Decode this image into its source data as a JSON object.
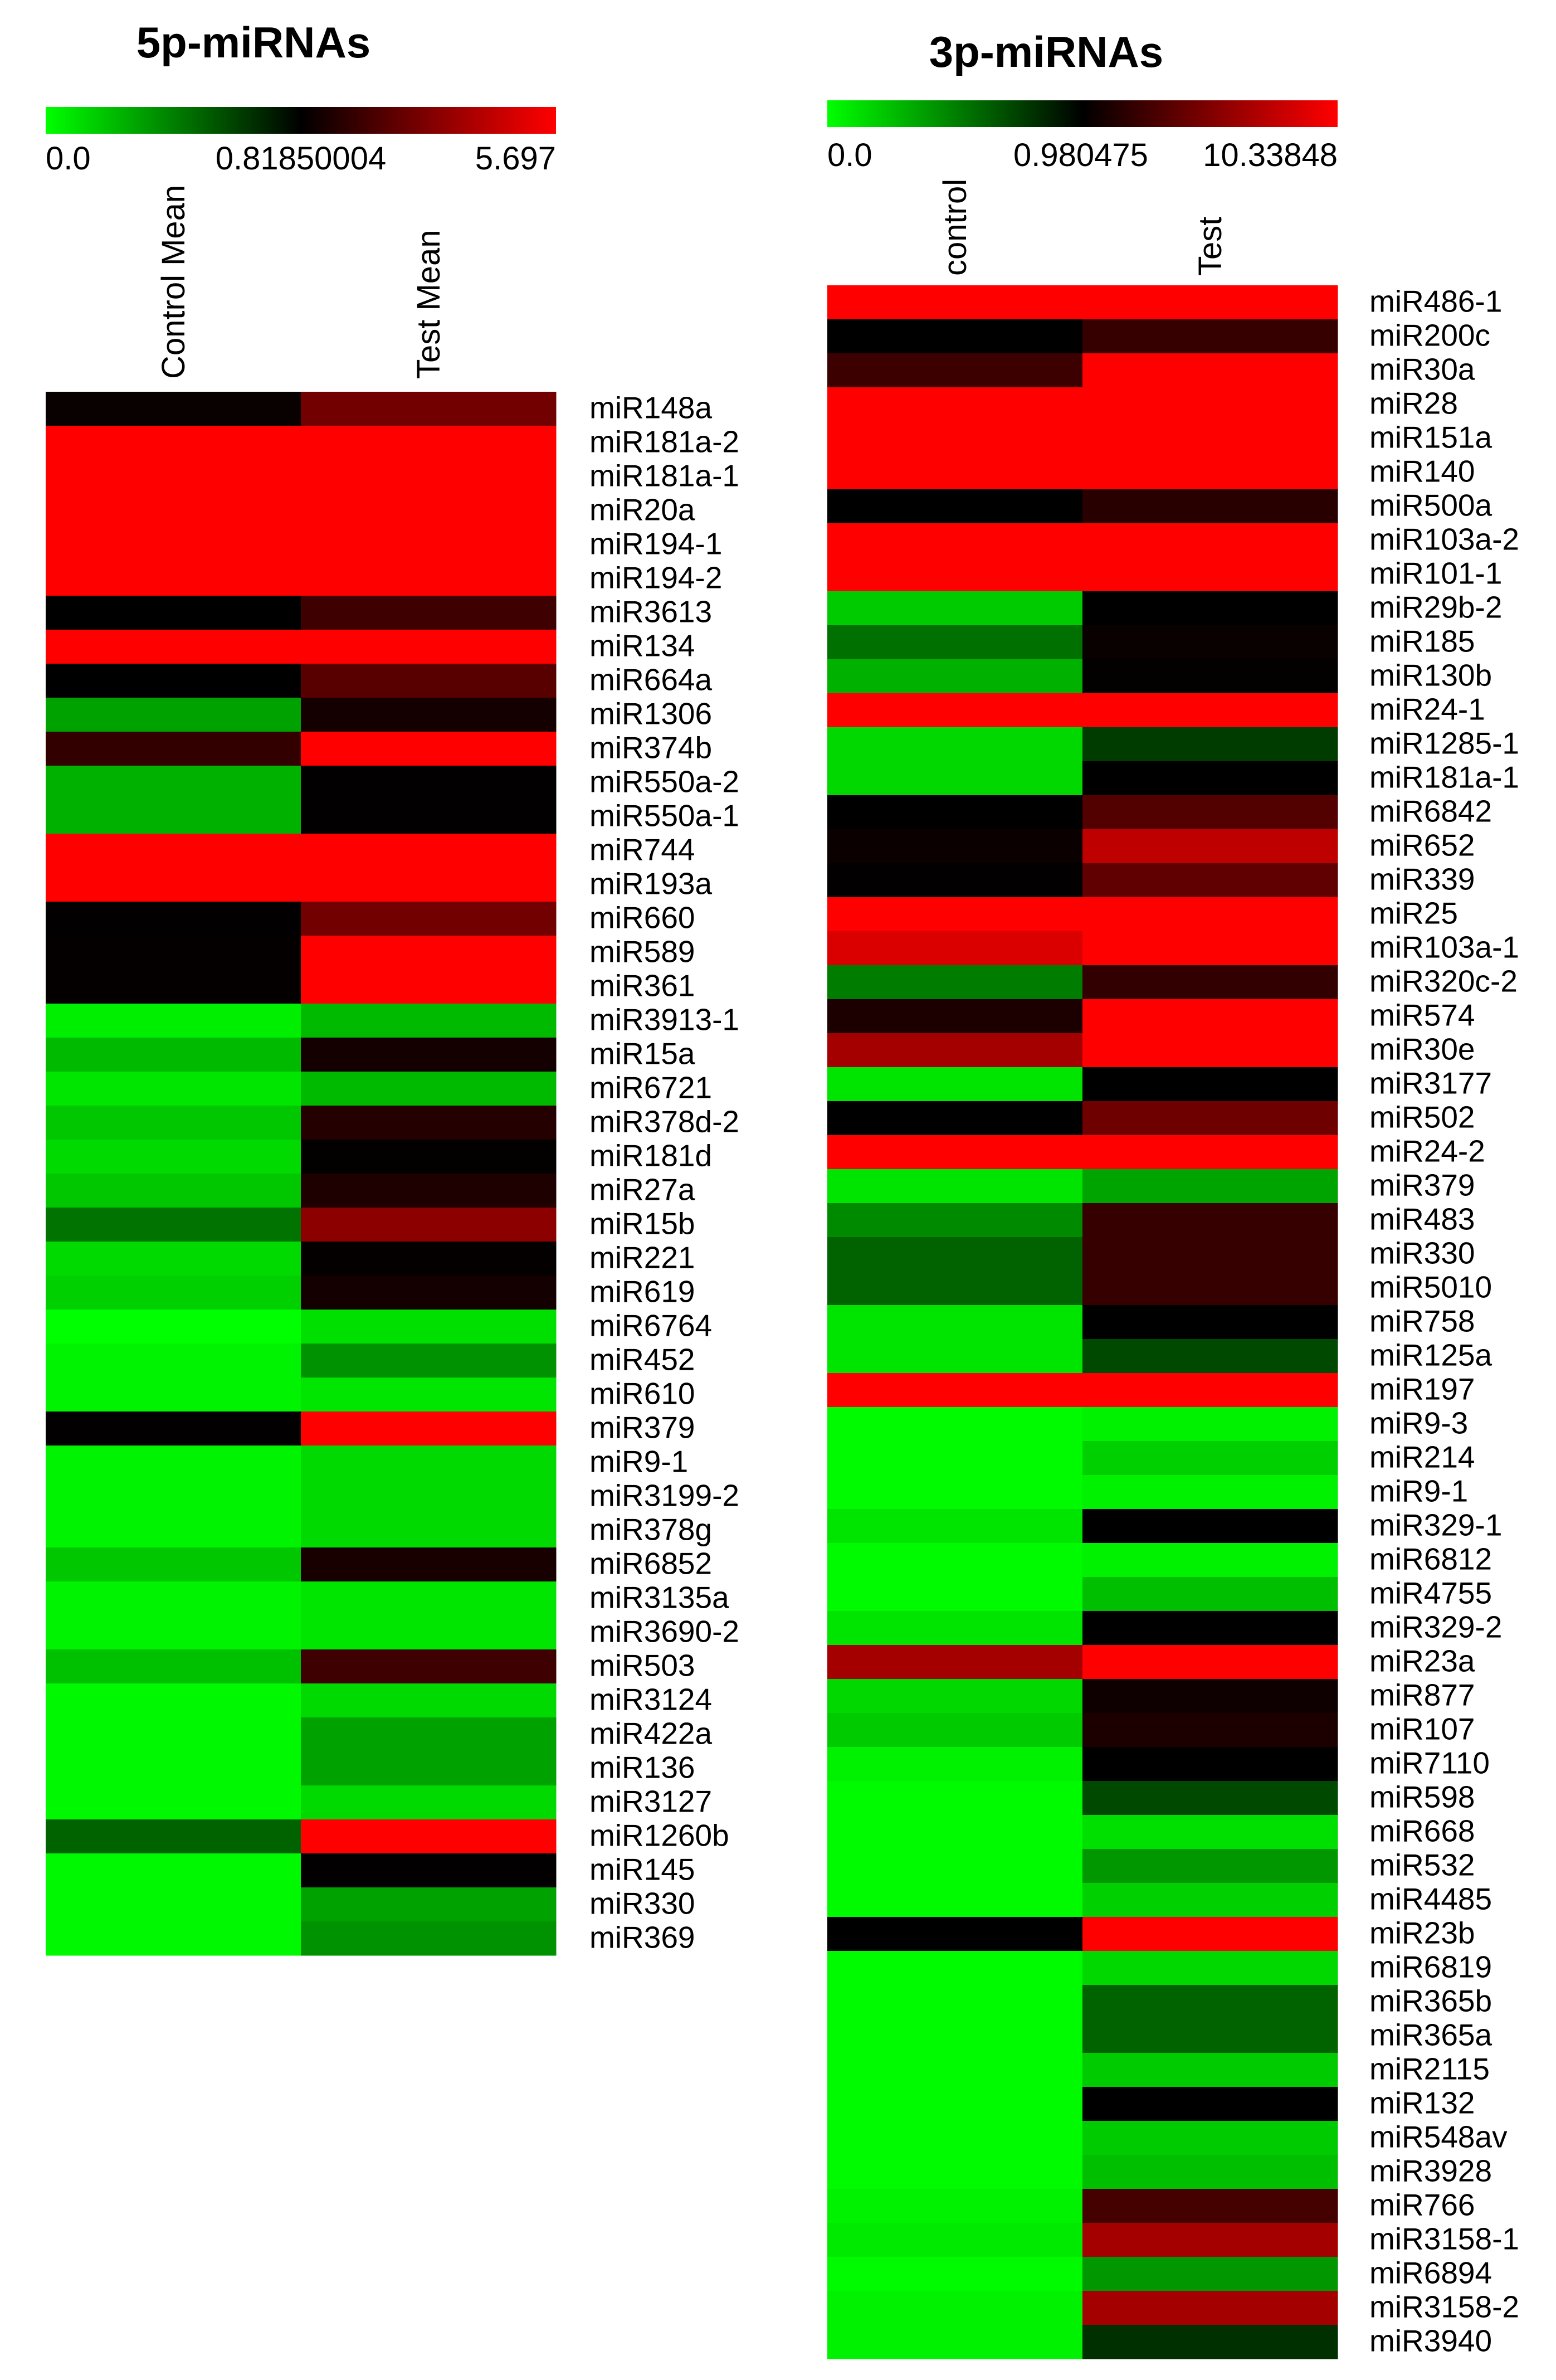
{
  "chart_data": [
    {
      "type": "heatmap",
      "title": "5p-miRNAs",
      "columns": [
        "Control Mean",
        "Test Mean"
      ],
      "scale": {
        "min": 0.0,
        "mid": 0.81850004,
        "max": 5.697,
        "min_label": "0.0",
        "mid_label": "0.81850004",
        "max_label": "5.697",
        "colors": [
          "#00ff00",
          "#000000",
          "#ff0000"
        ]
      },
      "rows": [
        "miR148a",
        "miR181a-2",
        "miR181a-1",
        "miR20a",
        "miR194-1",
        "miR194-2",
        "miR3613",
        "miR134",
        "miR664a",
        "miR1306",
        "miR374b",
        "miR550a-2",
        "miR550a-1",
        "miR744",
        "miR193a",
        "miR660",
        "miR589",
        "miR361",
        "miR3913-1",
        "miR15a",
        "miR6721",
        "miR378d-2",
        "miR181d",
        "miR27a",
        "miR15b",
        "miR221",
        "miR619",
        "miR6764",
        "miR452",
        "miR610",
        "miR379",
        "miR9-1",
        "miR3199-2",
        "miR378g",
        "miR6852",
        "miR3135a",
        "miR3690-2",
        "miR503",
        "miR3124",
        "miR422a",
        "miR136",
        "miR3127",
        "miR1260b",
        "miR145",
        "miR330",
        "miR369"
      ],
      "values": [
        [
          1.0,
          3.0
        ],
        [
          6.0,
          6.0
        ],
        [
          6.0,
          6.0
        ],
        [
          6.0,
          6.0
        ],
        [
          6.0,
          6.0
        ],
        [
          6.0,
          6.0
        ],
        [
          0.82,
          2.0
        ],
        [
          6.0,
          6.0
        ],
        [
          0.82,
          2.5
        ],
        [
          0.3,
          1.2
        ],
        [
          1.8,
          6.0
        ],
        [
          0.25,
          0.85
        ],
        [
          0.25,
          0.85
        ],
        [
          6.0,
          6.0
        ],
        [
          6.0,
          6.0
        ],
        [
          0.85,
          3.0
        ],
        [
          0.9,
          6.0
        ],
        [
          0.9,
          6.0
        ],
        [
          0.05,
          0.22
        ],
        [
          0.22,
          1.2
        ],
        [
          0.08,
          0.22
        ],
        [
          0.18,
          1.5
        ],
        [
          0.12,
          0.88
        ],
        [
          0.18,
          1.4
        ],
        [
          0.45,
          3.5
        ],
        [
          0.12,
          0.9
        ],
        [
          0.15,
          1.2
        ],
        [
          0.0,
          0.1
        ],
        [
          0.04,
          0.35
        ],
        [
          0.04,
          0.08
        ],
        [
          0.85,
          6.0
        ],
        [
          0.04,
          0.12
        ],
        [
          0.04,
          0.12
        ],
        [
          0.04,
          0.12
        ],
        [
          0.18,
          1.3
        ],
        [
          0.04,
          0.08
        ],
        [
          0.04,
          0.08
        ],
        [
          0.2,
          2.0
        ],
        [
          0.02,
          0.12
        ],
        [
          0.02,
          0.3
        ],
        [
          0.02,
          0.3
        ],
        [
          0.02,
          0.12
        ],
        [
          0.5,
          6.0
        ],
        [
          0.02,
          0.85
        ],
        [
          0.02,
          0.3
        ],
        [
          0.02,
          0.35
        ]
      ]
    },
    {
      "type": "heatmap",
      "title": "3p-miRNAs",
      "columns": [
        "control",
        "Test"
      ],
      "scale": {
        "min": 0.0,
        "mid": 0.980475,
        "max": 10.33848,
        "min_label": "0.0",
        "mid_label": "0.980475",
        "max_label": "10.33848",
        "colors": [
          "#00ff00",
          "#000000",
          "#ff0000"
        ]
      },
      "rows": [
        "miR486-1",
        "miR200c",
        "miR30a",
        "miR28",
        "miR151a",
        "miR140",
        "miR500a",
        "miR103a-2",
        "miR101-1",
        "miR29b-2",
        "miR185",
        "miR130b",
        "miR24-1",
        "miR1285-1",
        "miR181a-1",
        "miR6842",
        "miR652",
        "miR339",
        "miR25",
        "miR103a-1",
        "miR320c-2",
        "miR574",
        "miR30e",
        "miR3177",
        "miR502",
        "miR24-2",
        "miR379",
        "miR483",
        "miR330",
        "miR5010",
        "miR758",
        "miR125a",
        "miR197",
        "miR9-3",
        "miR214",
        "miR9-1",
        "miR329-1",
        "miR6812",
        "miR4755",
        "miR329-2",
        "miR23a",
        "miR877",
        "miR107",
        "miR7110",
        "miR598",
        "miR668",
        "miR532",
        "miR4485",
        "miR23b",
        "miR6819",
        "miR365b",
        "miR365a",
        "miR2115",
        "miR132",
        "miR548av",
        "miR3928",
        "miR766",
        "miR3158-1",
        "miR6894",
        "miR3158-2",
        "miR3940"
      ],
      "values": [
        [
          11.0,
          11.0
        ],
        [
          1.0,
          3.0
        ],
        [
          3.2,
          11.0
        ],
        [
          11.0,
          11.0
        ],
        [
          11.0,
          11.0
        ],
        [
          11.0,
          11.0
        ],
        [
          0.98,
          2.5
        ],
        [
          11.0,
          11.0
        ],
        [
          11.0,
          11.0
        ],
        [
          0.2,
          0.98
        ],
        [
          0.55,
          1.3
        ],
        [
          0.3,
          1.1
        ],
        [
          11.0,
          11.0
        ],
        [
          0.15,
          0.75
        ],
        [
          0.15,
          1.0
        ],
        [
          0.98,
          4.0
        ],
        [
          1.4,
          8.0
        ],
        [
          1.05,
          4.5
        ],
        [
          11.0,
          11.0
        ],
        [
          9.0,
          11.0
        ],
        [
          0.5,
          2.8
        ],
        [
          2.0,
          11.0
        ],
        [
          7.0,
          11.0
        ],
        [
          0.1,
          1.0
        ],
        [
          1.0,
          5.0
        ],
        [
          11.0,
          11.0
        ],
        [
          0.1,
          0.35
        ],
        [
          0.45,
          3.0
        ],
        [
          0.6,
          3.0
        ],
        [
          0.6,
          3.0
        ],
        [
          0.1,
          1.0
        ],
        [
          0.1,
          0.7
        ],
        [
          11.0,
          11.0
        ],
        [
          0.02,
          0.05
        ],
        [
          0.02,
          0.18
        ],
        [
          0.02,
          0.05
        ],
        [
          0.1,
          1.0
        ],
        [
          0.02,
          0.05
        ],
        [
          0.02,
          0.25
        ],
        [
          0.1,
          0.98
        ],
        [
          7.0,
          11.0
        ],
        [
          0.15,
          1.5
        ],
        [
          0.2,
          2.0
        ],
        [
          0.05,
          1.0
        ],
        [
          0.02,
          0.7
        ],
        [
          0.02,
          0.12
        ],
        [
          0.02,
          0.4
        ],
        [
          0.02,
          0.18
        ],
        [
          1.0,
          11.0
        ],
        [
          0.02,
          0.15
        ],
        [
          0.02,
          0.6
        ],
        [
          0.02,
          0.6
        ],
        [
          0.02,
          0.2
        ],
        [
          0.02,
          1.0
        ],
        [
          0.02,
          0.2
        ],
        [
          0.02,
          0.25
        ],
        [
          0.05,
          3.5
        ],
        [
          0.08,
          7.0
        ],
        [
          0.02,
          0.4
        ],
        [
          0.05,
          7.0
        ],
        [
          0.05,
          0.8
        ]
      ]
    }
  ]
}
